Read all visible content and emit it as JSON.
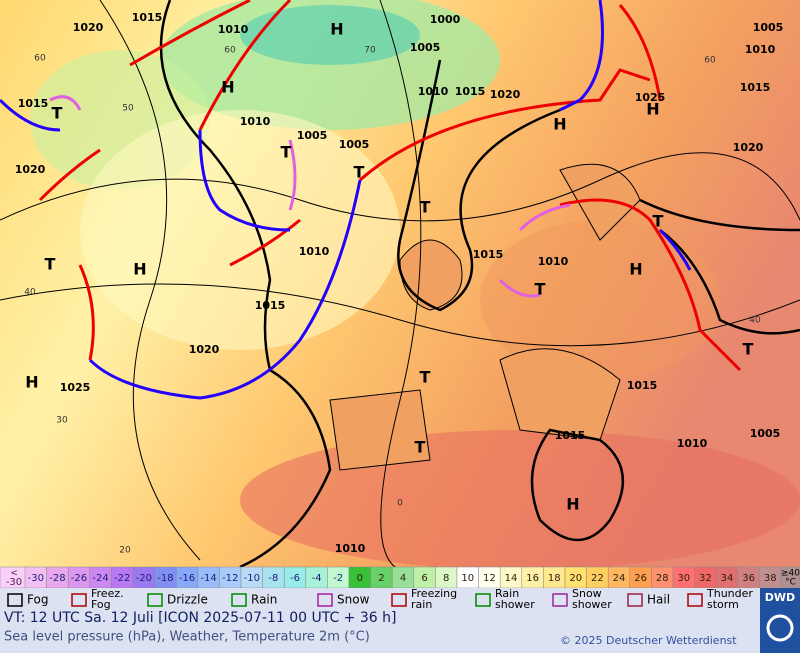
{
  "map": {
    "isobar_labels": [
      "1015",
      "1010",
      "1000",
      "1005",
      "1005",
      "1010",
      "1020",
      "1015",
      "1010",
      "1005",
      "1005",
      "1010",
      "1015",
      "1020",
      "1025",
      "1015",
      "1020",
      "1020",
      "1010",
      "1015",
      "1010",
      "1015",
      "1020",
      "1025",
      "1015",
      "1015",
      "1010",
      "1005",
      "1010"
    ],
    "systems": [
      "H",
      "H",
      "H",
      "H",
      "T",
      "T",
      "T",
      "T",
      "H",
      "H",
      "T",
      "T",
      "H",
      "T",
      "T",
      "T",
      "H",
      "T"
    ],
    "graticule_labels": [
      "60",
      "50",
      "70",
      "60",
      "40",
      "30",
      "20",
      "0",
      "40",
      "60"
    ]
  },
  "scale": {
    "low_label": [
      "<",
      "-30"
    ],
    "values": [
      "-30",
      "-28",
      "-26",
      "-24",
      "-22",
      "-20",
      "-18",
      "-16",
      "-14",
      "-12",
      "-10",
      "-8",
      "-6",
      "-4",
      "-2",
      "0",
      "2",
      "4",
      "6",
      "8",
      "10",
      "12",
      "14",
      "16",
      "18",
      "20",
      "22",
      "24",
      "26",
      "28",
      "30",
      "32",
      "34",
      "36",
      "38"
    ],
    "high_label": [
      "≥40",
      "°C"
    ]
  },
  "weather_legend": [
    "Fog",
    "Freez. Fog",
    "Drizzle",
    "Rain",
    "Snow",
    "Freezing rain",
    "Rain shower",
    "Snow shower",
    "Hail",
    "Thunder storm"
  ],
  "footer": {
    "valid": "VT: 12 UTC Sa.  12 Juli [ICON 2025-07-11  00 UTC + 36 h]",
    "subtitle": "Sea level pressure (hPa), Weather, Temperature 2m (°C)",
    "copyright": "© 2025 Deutscher Wetterdienst",
    "logo": "DWD"
  }
}
